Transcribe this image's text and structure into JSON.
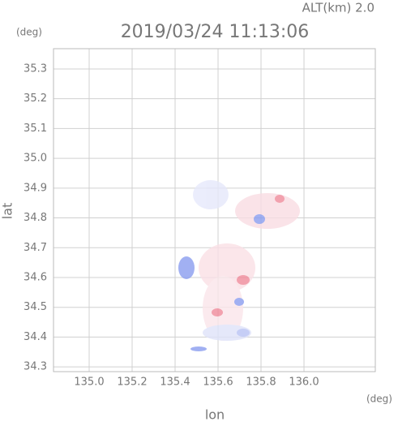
{
  "chart_data": {
    "type": "map",
    "title": "2019/03/24 11:13:06",
    "annotation": "ALT(km) 2.0",
    "x_label": "lon",
    "y_label": "lat",
    "x_unit": "(deg)",
    "y_unit": "(deg)",
    "xlim": [
      134.834,
      136.332
    ],
    "ylim": [
      34.284,
      35.368
    ],
    "xticks": [
      {
        "value": 135,
        "label": "135.0"
      },
      135.2,
      135.4,
      135.6,
      135.8,
      {
        "value": 136,
        "label": "136.0"
      }
    ],
    "yticks": [
      34.3,
      34.4,
      34.5,
      34.6,
      34.7,
      34.8,
      34.9,
      {
        "value": 35,
        "label": "35.0"
      },
      35.1,
      35.2,
      35.3
    ],
    "grid": true
  }
}
